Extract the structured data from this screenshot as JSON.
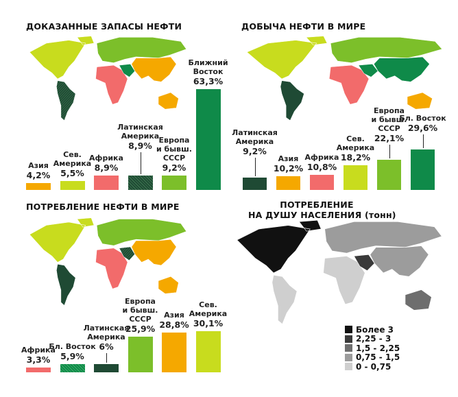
{
  "chart_data": [
    {
      "type": "bar",
      "title": "ДОКАЗАННЫЕ ЗАПАСЫ НЕФТИ",
      "categories": [
        "Азия",
        "Сев. Америка",
        "Африка",
        "Латинская Америка",
        "Европа и бывш. СССР",
        "Ближний Восток"
      ],
      "values": [
        4.2,
        5.5,
        8.9,
        8.9,
        9.2,
        63.3
      ],
      "value_labels": [
        "4,2%",
        "5,5%",
        "8,9%",
        "8,9%",
        "9,2%",
        "63,3%"
      ],
      "colors": [
        "#f5a800",
        "#c8dc1e",
        "#f26b6b",
        "#1f4a34",
        "#7cbf2a",
        "#0f8a49"
      ],
      "unit": "%"
    },
    {
      "type": "bar",
      "title": "ДОБЫЧА НЕФТИ В МИРЕ",
      "categories": [
        "Латинская Америка",
        "Азия",
        "Африка",
        "Сев. Америка",
        "Европа и бывш. СССР",
        "Бл. Восток"
      ],
      "values": [
        9.2,
        10.2,
        10.8,
        18.2,
        22.1,
        29.6
      ],
      "value_labels": [
        "9,2%",
        "10,2%",
        "10,8%",
        "18,2%",
        "22,1%",
        "29,6%"
      ],
      "colors": [
        "#1f4a34",
        "#f5a800",
        "#f26b6b",
        "#c8dc1e",
        "#7cbf2a",
        "#0f8a49"
      ],
      "unit": "%"
    },
    {
      "type": "bar",
      "title": "ПОТРЕБЛЕНИЕ НЕФТИ В МИРЕ",
      "categories": [
        "Африка",
        "Бл. Восток",
        "Латинская Америка",
        "Европа и бывш. СССР",
        "Азия",
        "Сев. Америка"
      ],
      "values": [
        3.3,
        5.9,
        6,
        25.9,
        28.8,
        30.1
      ],
      "value_labels": [
        "3,3%",
        "5,9%",
        "6%",
        "25,9%",
        "28,8%",
        "30,1%"
      ],
      "colors": [
        "#f26b6b",
        "#0f8a49",
        "#1f4a34",
        "#7cbf2a",
        "#f5a800",
        "#c8dc1e"
      ],
      "unit": "%"
    }
  ],
  "per_capita": {
    "title_line1": "ПОТРЕБЛЕНИЕ",
    "title_line2": "НА ДУШУ НАСЕЛЕНИЯ (тонн)",
    "legend": [
      {
        "label": "Более 3",
        "color": "#111111"
      },
      {
        "label": "2,25 - 3",
        "color": "#3a3a3a"
      },
      {
        "label": "1,5 - 2,25",
        "color": "#6e6e6e"
      },
      {
        "label": "0,75 - 1,5",
        "color": "#9c9c9c"
      },
      {
        "label": "0 - 0,75",
        "color": "#cfcfcf"
      }
    ]
  }
}
